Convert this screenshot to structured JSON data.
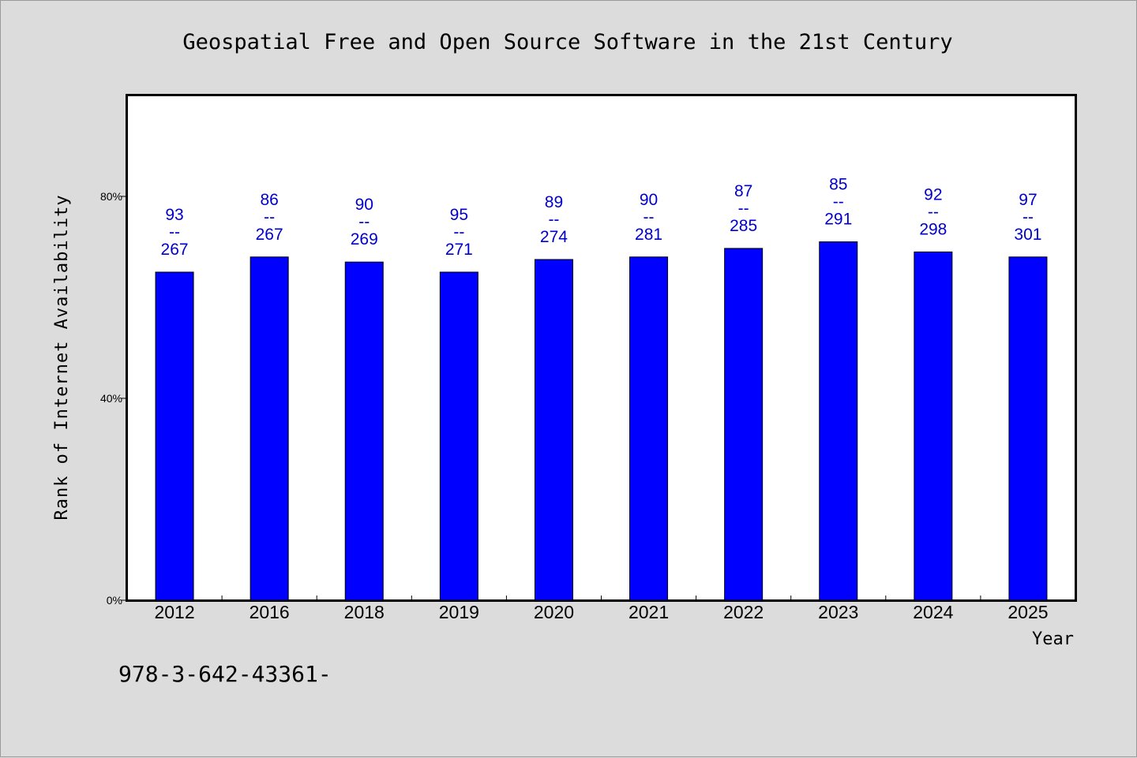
{
  "chart_data": {
    "type": "bar",
    "title": "Geospatial Free and Open Source Software in the 21st Century",
    "xlabel": "Year",
    "ylabel": "Rank of Internet Availability",
    "categories": [
      "2012",
      "2016",
      "2018",
      "2019",
      "2020",
      "2021",
      "2022",
      "2023",
      "2024",
      "2025"
    ],
    "values": [
      65,
      68,
      67,
      65,
      67.5,
      68,
      69.7,
      71,
      69,
      68
    ],
    "data_labels": [
      [
        "93",
        "--",
        "267"
      ],
      [
        "86",
        "--",
        "267"
      ],
      [
        "90",
        "--",
        "269"
      ],
      [
        "95",
        "--",
        "271"
      ],
      [
        "89",
        "--",
        "274"
      ],
      [
        "90",
        "--",
        "281"
      ],
      [
        "87",
        "--",
        "285"
      ],
      [
        "85",
        "--",
        "291"
      ],
      [
        "92",
        "--",
        "298"
      ],
      [
        "97",
        "--",
        "301"
      ]
    ],
    "ylim": [
      0,
      100
    ],
    "yticks": [
      {
        "value": 0,
        "label": "0%"
      },
      {
        "value": 40,
        "label": "40%"
      },
      {
        "value": 80,
        "label": "80%"
      }
    ],
    "grid": false,
    "legend": "none",
    "colors": {
      "bar": "#0000ff",
      "label": "#0000cc",
      "plot_bg": "#ffffff",
      "page_bg": "#dcdcdc"
    }
  },
  "footer_text": "978-3-642-43361-"
}
